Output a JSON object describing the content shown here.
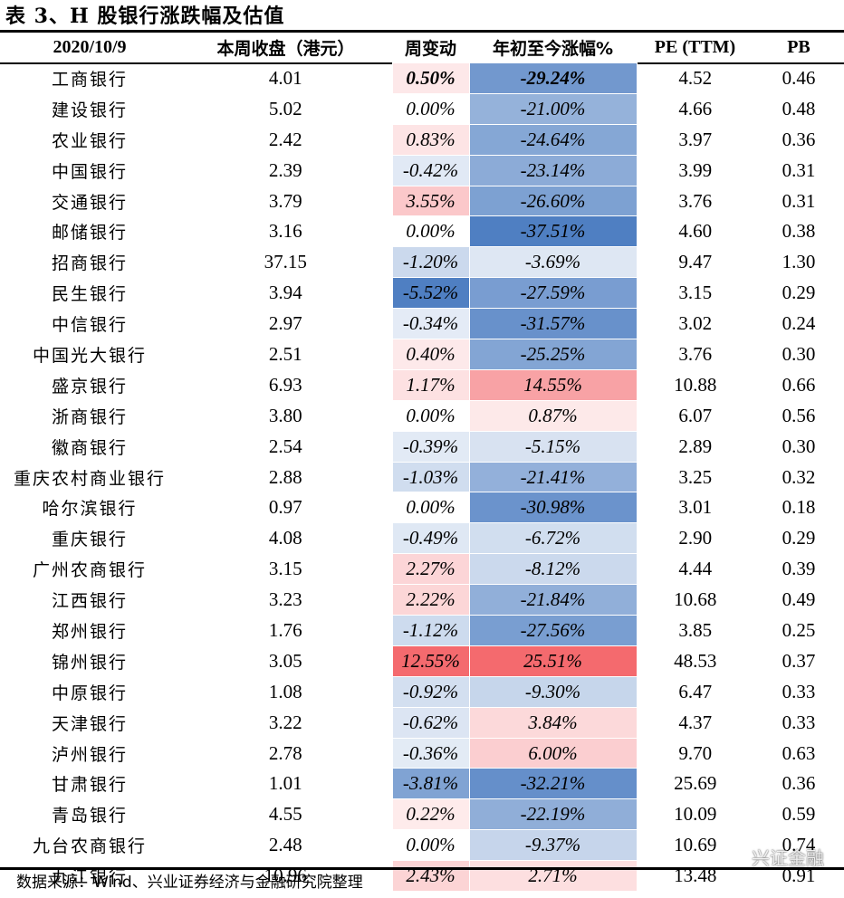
{
  "title": "表 3、H 股银行涨跌幅及估值",
  "table": {
    "headers": [
      "2020/10/9",
      "本周收盘（港元）",
      "周变动",
      "年初至今涨幅%",
      "PE (TTM)",
      "PB"
    ],
    "rows": [
      {
        "name": "工商银行",
        "close": "4.01",
        "week": "0.50%",
        "week_v": 0.5,
        "ytd": "-29.24%",
        "ytd_v": -29.24,
        "pe": "4.52",
        "pb": "0.46"
      },
      {
        "name": "建设银行",
        "close": "5.02",
        "week": "0.00%",
        "week_v": 0.0,
        "ytd": "-21.00%",
        "ytd_v": -21.0,
        "pe": "4.66",
        "pb": "0.48"
      },
      {
        "name": "农业银行",
        "close": "2.42",
        "week": "0.83%",
        "week_v": 0.83,
        "ytd": "-24.64%",
        "ytd_v": -24.64,
        "pe": "3.97",
        "pb": "0.36"
      },
      {
        "name": "中国银行",
        "close": "2.39",
        "week": "-0.42%",
        "week_v": -0.42,
        "ytd": "-23.14%",
        "ytd_v": -23.14,
        "pe": "3.99",
        "pb": "0.31"
      },
      {
        "name": "交通银行",
        "close": "3.79",
        "week": "3.55%",
        "week_v": 3.55,
        "ytd": "-26.60%",
        "ytd_v": -26.6,
        "pe": "3.76",
        "pb": "0.31"
      },
      {
        "name": "邮储银行",
        "close": "3.16",
        "week": "0.00%",
        "week_v": 0.0,
        "ytd": "-37.51%",
        "ytd_v": -37.51,
        "pe": "4.60",
        "pb": "0.38"
      },
      {
        "name": "招商银行",
        "close": "37.15",
        "week": "-1.20%",
        "week_v": -1.2,
        "ytd": "-3.69%",
        "ytd_v": -3.69,
        "pe": "9.47",
        "pb": "1.30"
      },
      {
        "name": "民生银行",
        "close": "3.94",
        "week": "-5.52%",
        "week_v": -5.52,
        "ytd": "-27.59%",
        "ytd_v": -27.59,
        "pe": "3.15",
        "pb": "0.29"
      },
      {
        "name": "中信银行",
        "close": "2.97",
        "week": "-0.34%",
        "week_v": -0.34,
        "ytd": "-31.57%",
        "ytd_v": -31.57,
        "pe": "3.02",
        "pb": "0.24"
      },
      {
        "name": "中国光大银行",
        "close": "2.51",
        "week": "0.40%",
        "week_v": 0.4,
        "ytd": "-25.25%",
        "ytd_v": -25.25,
        "pe": "3.76",
        "pb": "0.30"
      },
      {
        "name": "盛京银行",
        "close": "6.93",
        "week": "1.17%",
        "week_v": 1.17,
        "ytd": "14.55%",
        "ytd_v": 14.55,
        "pe": "10.88",
        "pb": "0.66"
      },
      {
        "name": "浙商银行",
        "close": "3.80",
        "week": "0.00%",
        "week_v": 0.0,
        "ytd": "0.87%",
        "ytd_v": 0.87,
        "pe": "6.07",
        "pb": "0.56"
      },
      {
        "name": "徽商银行",
        "close": "2.54",
        "week": "-0.39%",
        "week_v": -0.39,
        "ytd": "-5.15%",
        "ytd_v": -5.15,
        "pe": "2.89",
        "pb": "0.30"
      },
      {
        "name": "重庆农村商业银行",
        "close": "2.88",
        "week": "-1.03%",
        "week_v": -1.03,
        "ytd": "-21.41%",
        "ytd_v": -21.41,
        "pe": "3.25",
        "pb": "0.32"
      },
      {
        "name": "哈尔滨银行",
        "close": "0.97",
        "week": "0.00%",
        "week_v": 0.0,
        "ytd": "-30.98%",
        "ytd_v": -30.98,
        "pe": "3.01",
        "pb": "0.18"
      },
      {
        "name": "重庆银行",
        "close": "4.08",
        "week": "-0.49%",
        "week_v": -0.49,
        "ytd": "-6.72%",
        "ytd_v": -6.72,
        "pe": "2.90",
        "pb": "0.29"
      },
      {
        "name": "广州农商银行",
        "close": "3.15",
        "week": "2.27%",
        "week_v": 2.27,
        "ytd": "-8.12%",
        "ytd_v": -8.12,
        "pe": "4.44",
        "pb": "0.39"
      },
      {
        "name": "江西银行",
        "close": "3.23",
        "week": "2.22%",
        "week_v": 2.22,
        "ytd": "-21.84%",
        "ytd_v": -21.84,
        "pe": "10.68",
        "pb": "0.49"
      },
      {
        "name": "郑州银行",
        "close": "1.76",
        "week": "-1.12%",
        "week_v": -1.12,
        "ytd": "-27.56%",
        "ytd_v": -27.56,
        "pe": "3.85",
        "pb": "0.25"
      },
      {
        "name": "锦州银行",
        "close": "3.05",
        "week": "12.55%",
        "week_v": 12.55,
        "ytd": "25.51%",
        "ytd_v": 25.51,
        "pe": "48.53",
        "pb": "0.37"
      },
      {
        "name": "中原银行",
        "close": "1.08",
        "week": "-0.92%",
        "week_v": -0.92,
        "ytd": "-9.30%",
        "ytd_v": -9.3,
        "pe": "6.47",
        "pb": "0.33"
      },
      {
        "name": "天津银行",
        "close": "3.22",
        "week": "-0.62%",
        "week_v": -0.62,
        "ytd": "3.84%",
        "ytd_v": 3.84,
        "pe": "4.37",
        "pb": "0.33"
      },
      {
        "name": "泸州银行",
        "close": "2.78",
        "week": "-0.36%",
        "week_v": -0.36,
        "ytd": "6.00%",
        "ytd_v": 6.0,
        "pe": "9.70",
        "pb": "0.63"
      },
      {
        "name": "甘肃银行",
        "close": "1.01",
        "week": "-3.81%",
        "week_v": -3.81,
        "ytd": "-32.21%",
        "ytd_v": -32.21,
        "pe": "25.69",
        "pb": "0.36"
      },
      {
        "name": "青岛银行",
        "close": "4.55",
        "week": "0.22%",
        "week_v": 0.22,
        "ytd": "-22.19%",
        "ytd_v": -22.19,
        "pe": "10.09",
        "pb": "0.59"
      },
      {
        "name": "九台农商银行",
        "close": "2.48",
        "week": "0.00%",
        "week_v": 0.0,
        "ytd": "-9.37%",
        "ytd_v": -9.37,
        "pe": "10.69",
        "pb": "0.74"
      },
      {
        "name": "九江银行",
        "close": "10.96",
        "week": "2.43%",
        "week_v": 2.43,
        "ytd": "2.71%",
        "ytd_v": 2.71,
        "pe": "13.48",
        "pb": "0.91"
      }
    ]
  },
  "source": "数据来源：Wind、兴业证券经济与金融研究院整理",
  "watermark": {
    "text": "兴证金融",
    "icon": "wechat-icon"
  },
  "colors": {
    "positive": "#f46a6e",
    "negative": "#4f7fc2",
    "text": "#000000"
  }
}
